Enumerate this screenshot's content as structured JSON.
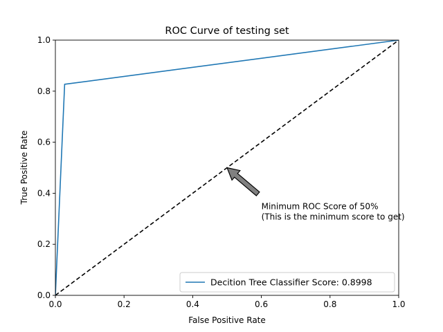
{
  "chart_data": {
    "type": "line",
    "title": "ROC Curve of testing set",
    "xlabel": "False Positive Rate",
    "ylabel": "True Positive Rate",
    "xlim": [
      0.0,
      1.0
    ],
    "ylim": [
      0.0,
      1.0
    ],
    "x_tick_values": [
      0.0,
      0.2,
      0.4,
      0.6,
      0.8,
      1.0
    ],
    "x_tick_labels": [
      "0.0",
      "0.2",
      "0.4",
      "0.6",
      "0.8",
      "1.0"
    ],
    "y_tick_values": [
      0.0,
      0.2,
      0.4,
      0.6,
      0.8,
      1.0
    ],
    "y_tick_labels": [
      "0.0",
      "0.2",
      "0.4",
      "0.6",
      "0.8",
      "1.0"
    ],
    "grid": false,
    "legend_position": "lower-right",
    "series": [
      {
        "name": "Decition Tree Classifier Score: 0.8998",
        "color": "#1f77b4",
        "style": "solid",
        "x": [
          0.0,
          0.027,
          1.0
        ],
        "y": [
          0.0,
          0.827,
          1.0
        ]
      }
    ],
    "reference_line": {
      "color": "#000000",
      "style": "dashed",
      "x": [
        0.0,
        1.0
      ],
      "y": [
        0.0,
        1.0
      ]
    },
    "annotation": {
      "line1": "Minimum ROC Score of 50%",
      "line2": " (This is the minimum score to get)",
      "arrow_target": [
        0.5,
        0.5
      ],
      "text_position": [
        0.6,
        0.3
      ],
      "arrow_color": "#808080"
    }
  }
}
